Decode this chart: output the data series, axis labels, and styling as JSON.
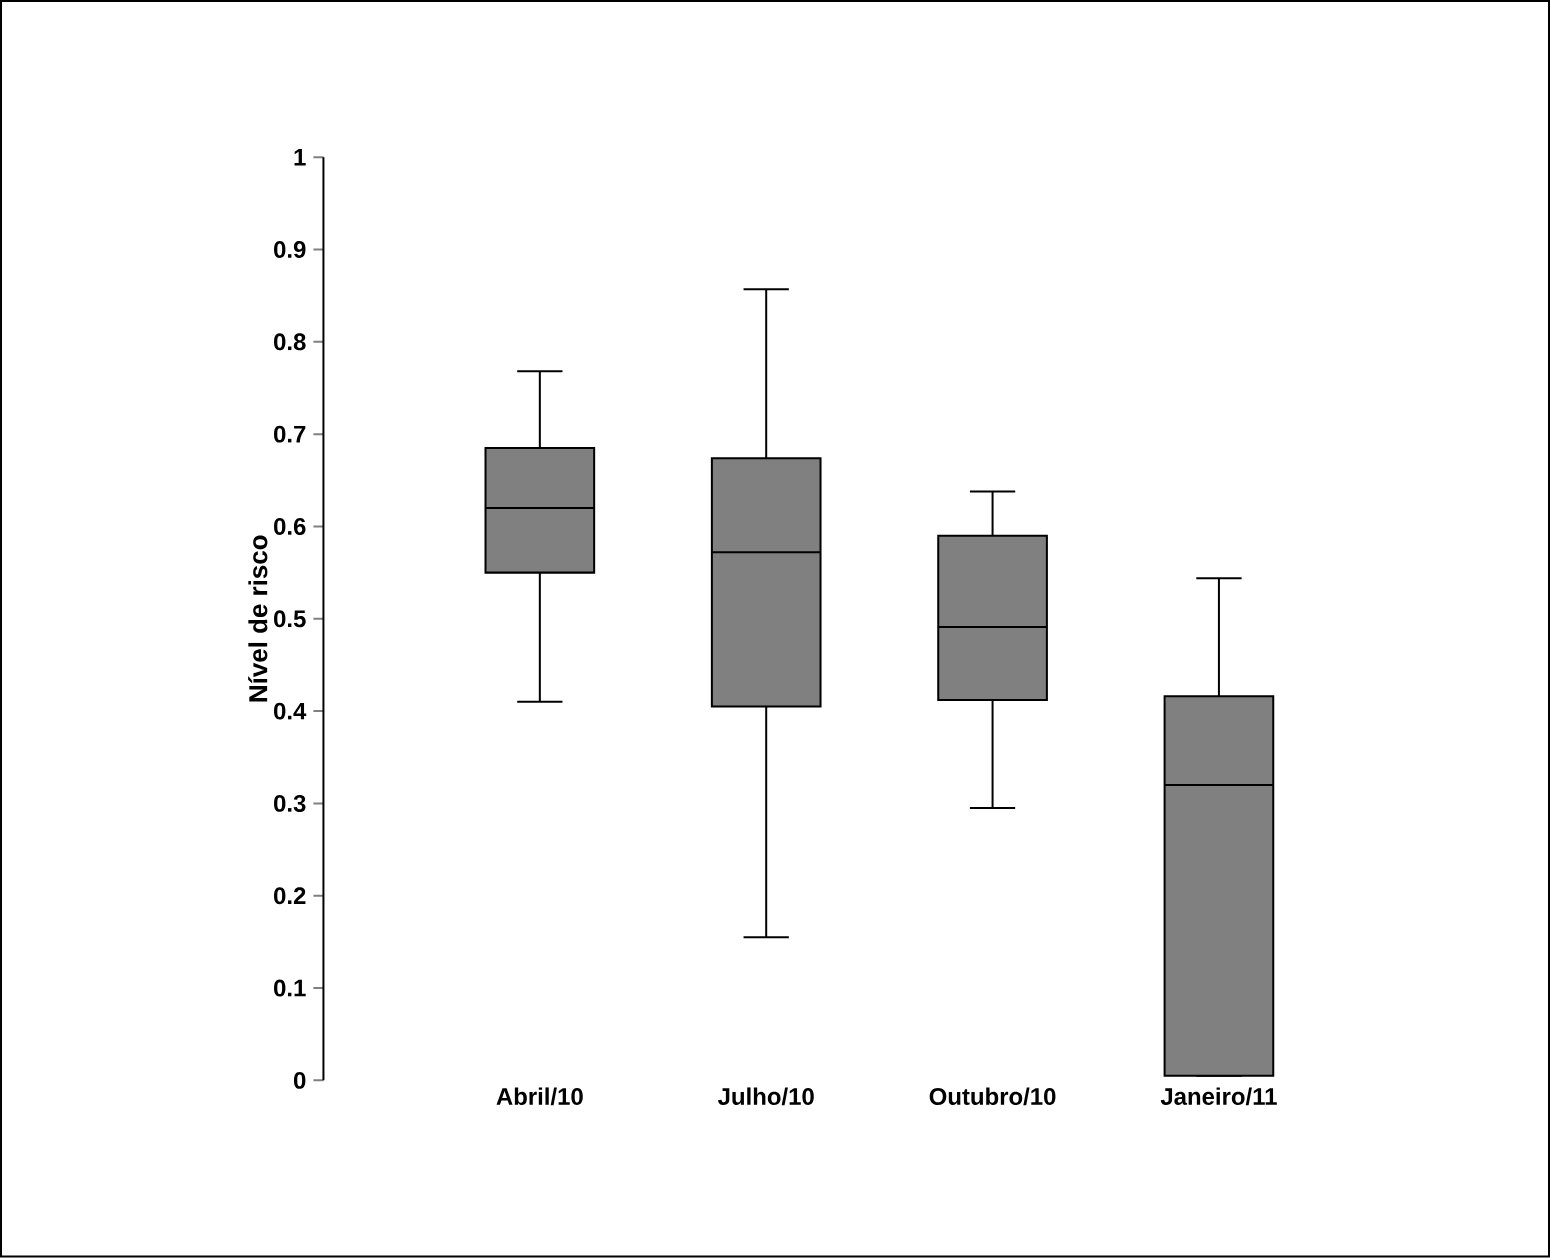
{
  "chart_data": {
    "type": "box",
    "ylabel": "Nível de risco",
    "categories": [
      "Abril/10",
      "Julho/10",
      "Outubro/10",
      "Janeiro/11"
    ],
    "color": "#808080",
    "ylim": [
      0,
      1
    ],
    "yticks": [
      0,
      0.1,
      0.2,
      0.3,
      0.4,
      0.5,
      0.6,
      0.7,
      0.8,
      0.9,
      1
    ],
    "boxes": [
      {
        "low": 0.41,
        "q1": 0.55,
        "median": 0.62,
        "q3": 0.685,
        "high": 0.768
      },
      {
        "low": 0.155,
        "q1": 0.405,
        "median": 0.572,
        "q3": 0.674,
        "high": 0.857
      },
      {
        "low": 0.295,
        "q1": 0.412,
        "median": 0.491,
        "q3": 0.59,
        "high": 0.638
      },
      {
        "low": 0.005,
        "q1": 0.005,
        "median": 0.32,
        "q3": 0.416,
        "high": 0.544
      }
    ]
  }
}
